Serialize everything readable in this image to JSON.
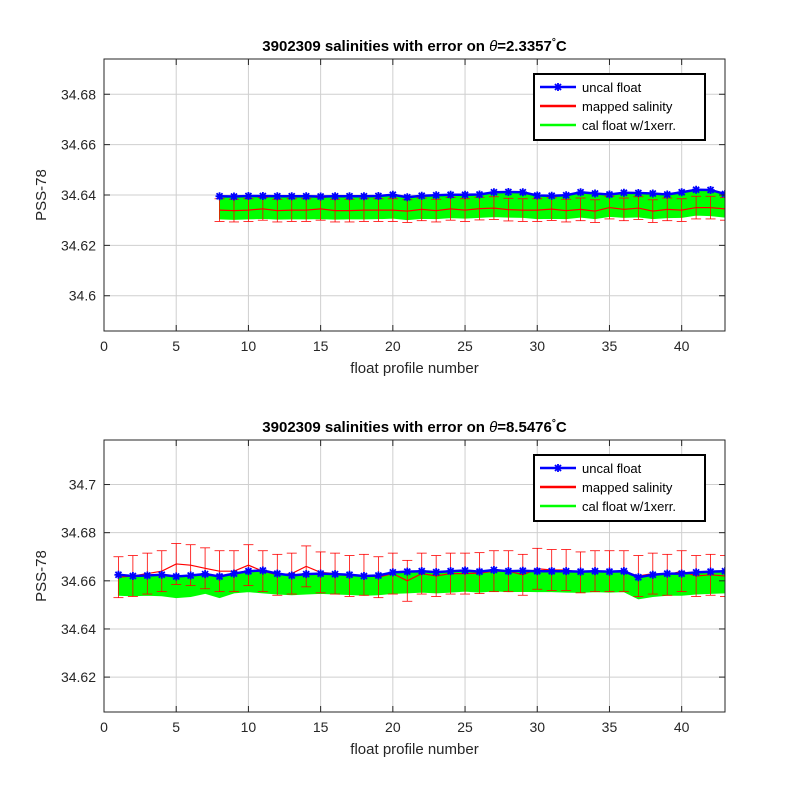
{
  "chart_data": [
    {
      "type": "line",
      "title_prefix": "3902309 salinities with error on ",
      "title_theta": "θ",
      "title_value": "=2.3357",
      "title_degree": "°",
      "title_unit": "C",
      "xlabel": "float profile number",
      "ylabel": "PSS-78",
      "xlim": [
        0,
        43
      ],
      "ylim": [
        34.586,
        34.694
      ],
      "xticks": [
        0,
        5,
        10,
        15,
        20,
        25,
        30,
        35,
        40
      ],
      "yticks": [
        34.6,
        34.62,
        34.64,
        34.66,
        34.68
      ],
      "ytick_labels": [
        "34.6",
        "34.62",
        "34.64",
        "34.66",
        "34.68"
      ],
      "grid": true,
      "legend_position": "top-right",
      "legend": [
        "uncal float",
        "mapped salinity",
        "cal float w/1xerr."
      ],
      "x": [
        8,
        9,
        10,
        11,
        12,
        13,
        14,
        15,
        16,
        17,
        18,
        19,
        20,
        21,
        22,
        23,
        24,
        25,
        26,
        27,
        28,
        29,
        30,
        31,
        32,
        33,
        34,
        35,
        36,
        37,
        38,
        39,
        40,
        41,
        42,
        43
      ],
      "uncal": [
        34.6395,
        34.6394,
        34.6396,
        34.6396,
        34.6395,
        34.6395,
        34.6395,
        34.6394,
        34.6395,
        34.6395,
        34.6395,
        34.6396,
        34.6401,
        34.6391,
        34.6397,
        34.6399,
        34.6401,
        34.6401,
        34.6402,
        34.6411,
        34.6412,
        34.6411,
        34.6398,
        34.6397,
        34.6399,
        34.6411,
        34.6406,
        34.6402,
        34.6409,
        34.6408,
        34.6406,
        34.6402,
        34.6411,
        34.6421,
        34.642,
        34.6404
      ],
      "mapped": [
        34.634,
        34.6338,
        34.634,
        34.6345,
        34.6338,
        34.634,
        34.634,
        34.6345,
        34.6338,
        34.6338,
        34.634,
        34.634,
        34.634,
        34.6336,
        34.6343,
        34.6338,
        34.6345,
        34.634,
        34.6346,
        34.6348,
        34.6342,
        34.634,
        34.634,
        34.6344,
        34.6338,
        34.6343,
        34.6336,
        34.635,
        34.6343,
        34.6348,
        34.6336,
        34.6343,
        34.634,
        34.635,
        34.635,
        34.6345
      ],
      "mapped_err": 0.0045,
      "cal_upper": [
        34.6395,
        34.6394,
        34.6396,
        34.6396,
        34.6395,
        34.6395,
        34.6395,
        34.6394,
        34.6395,
        34.6395,
        34.6395,
        34.6396,
        34.6401,
        34.6391,
        34.6397,
        34.6399,
        34.6401,
        34.6401,
        34.6402,
        34.6411,
        34.6412,
        34.6411,
        34.6398,
        34.6397,
        34.6399,
        34.6411,
        34.6406,
        34.6402,
        34.6409,
        34.6408,
        34.6406,
        34.6402,
        34.6411,
        34.6421,
        34.642,
        34.6404
      ],
      "cal_lower": [
        34.6305,
        34.6303,
        34.6305,
        34.6307,
        34.6304,
        34.6305,
        34.6305,
        34.6306,
        34.6304,
        34.6305,
        34.6305,
        34.6306,
        34.6308,
        34.6302,
        34.6307,
        34.6306,
        34.631,
        34.6308,
        34.6311,
        34.6314,
        34.6312,
        34.6311,
        34.6306,
        34.6307,
        34.6306,
        34.6312,
        34.6306,
        34.6315,
        34.6311,
        34.6313,
        34.6306,
        34.631,
        34.6311,
        34.632,
        34.6318,
        34.6312
      ]
    },
    {
      "type": "line",
      "title_prefix": "3902309 salinities with error on ",
      "title_theta": "θ",
      "title_value": "=8.5476",
      "title_degree": "°",
      "title_unit": "C",
      "xlabel": "float profile number",
      "ylabel": "PSS-78",
      "xlim": [
        0,
        43
      ],
      "ylim": [
        34.6055,
        34.7185
      ],
      "xticks": [
        0,
        5,
        10,
        15,
        20,
        25,
        30,
        35,
        40
      ],
      "yticks": [
        34.62,
        34.64,
        34.66,
        34.68,
        34.7
      ],
      "ytick_labels": [
        "34.62",
        "34.64",
        "34.66",
        "34.68",
        "34.7"
      ],
      "grid": true,
      "legend_position": "top-right",
      "legend": [
        "uncal float",
        "mapped salinity",
        "cal float w/1xerr."
      ],
      "x": [
        1,
        2,
        3,
        4,
        5,
        6,
        7,
        8,
        9,
        10,
        11,
        12,
        13,
        14,
        15,
        16,
        17,
        18,
        19,
        20,
        21,
        22,
        23,
        24,
        25,
        26,
        27,
        28,
        29,
        30,
        31,
        32,
        33,
        34,
        35,
        36,
        37,
        38,
        39,
        40,
        41,
        42,
        43
      ],
      "uncal": [
        34.6625,
        34.662,
        34.6622,
        34.6625,
        34.6618,
        34.6622,
        34.6628,
        34.6618,
        34.663,
        34.664,
        34.6643,
        34.663,
        34.6622,
        34.6628,
        34.663,
        34.6628,
        34.6625,
        34.662,
        34.6622,
        34.6635,
        34.6638,
        34.664,
        34.6636,
        34.664,
        34.6643,
        34.6638,
        34.6645,
        34.664,
        34.6642,
        34.664,
        34.664,
        34.664,
        34.6638,
        34.664,
        34.6638,
        34.664,
        34.6615,
        34.6625,
        34.663,
        34.663,
        34.6635,
        34.6638,
        34.664
      ],
      "mapped": [
        34.6615,
        34.662,
        34.663,
        34.664,
        34.667,
        34.6665,
        34.6652,
        34.664,
        34.664,
        34.6665,
        34.664,
        34.6625,
        34.663,
        34.666,
        34.6635,
        34.663,
        34.662,
        34.6625,
        34.6615,
        34.663,
        34.66,
        34.663,
        34.662,
        34.663,
        34.663,
        34.6632,
        34.664,
        34.664,
        34.6625,
        34.665,
        34.6645,
        34.6645,
        34.6635,
        34.664,
        34.664,
        34.664,
        34.662,
        34.663,
        34.6625,
        34.664,
        34.662,
        34.6625,
        34.662
      ],
      "mapped_err": 0.0085,
      "cal_upper": [
        34.6625,
        34.662,
        34.6622,
        34.6625,
        34.6618,
        34.6622,
        34.6628,
        34.6618,
        34.663,
        34.664,
        34.6643,
        34.663,
        34.6622,
        34.6628,
        34.663,
        34.6628,
        34.6625,
        34.662,
        34.6622,
        34.6635,
        34.6638,
        34.664,
        34.6636,
        34.664,
        34.6643,
        34.6638,
        34.6645,
        34.664,
        34.6642,
        34.664,
        34.664,
        34.664,
        34.6638,
        34.664,
        34.6638,
        34.664,
        34.6615,
        34.6625,
        34.663,
        34.663,
        34.6635,
        34.6638,
        34.664
      ],
      "cal_lower": [
        34.654,
        34.6538,
        34.654,
        34.6538,
        34.653,
        34.6535,
        34.6548,
        34.653,
        34.655,
        34.6555,
        34.655,
        34.6545,
        34.6542,
        34.6545,
        34.6548,
        34.6545,
        34.6543,
        34.654,
        34.6542,
        34.6548,
        34.655,
        34.6553,
        34.655,
        34.6553,
        34.6557,
        34.6553,
        34.6558,
        34.6555,
        34.6556,
        34.6555,
        34.6555,
        34.6553,
        34.6552,
        34.6555,
        34.6553,
        34.6555,
        34.6525,
        34.6535,
        34.654,
        34.654,
        34.6545,
        34.6548,
        34.655
      ]
    }
  ],
  "colors": {
    "uncal": "#0000ff",
    "mapped": "#ff0000",
    "cal": "#00ff00",
    "grid": "#cfcfcf",
    "axis": "#262626"
  }
}
